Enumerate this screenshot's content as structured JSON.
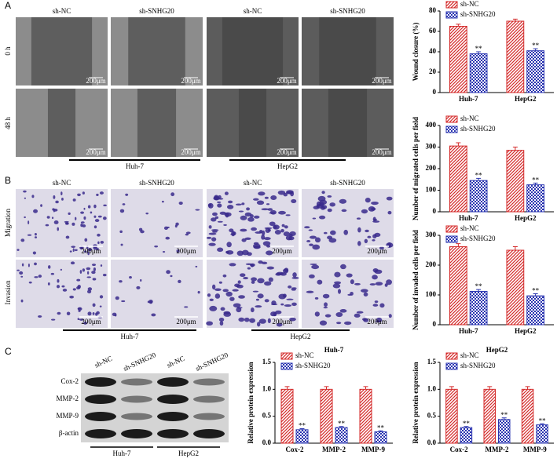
{
  "panel_labels": [
    "A",
    "B",
    "C"
  ],
  "panel_a": {
    "columns": [
      "sh-NC",
      "sh-SNHG20",
      "sh-NC",
      "sh-SNHG20"
    ],
    "rows": [
      "0 h",
      "48 h"
    ],
    "groups": [
      "Huh-7",
      "HepG2"
    ],
    "scale_bar": "200μm"
  },
  "panel_b": {
    "columns": [
      "sh-NC",
      "sh-SNHG20",
      "sh-NC",
      "sh-SNHG20"
    ],
    "rows": [
      "Migration",
      "Invasion"
    ],
    "groups": [
      "Huh-7",
      "HepG2"
    ],
    "scale_bar": "200μm"
  },
  "panel_c": {
    "columns": [
      "sh-NC",
      "sh-SNHG20",
      "sh-NC",
      "sh-SNHG20"
    ],
    "rows": [
      "Cox-2",
      "MMP-2",
      "MMP-9",
      "β-actin"
    ],
    "groups": [
      "Huh-7",
      "HepG2"
    ]
  },
  "chart_data": [
    {
      "type": "bar",
      "y_label": "Wound closure (%)",
      "categories": [
        "Huh-7",
        "HepG2"
      ],
      "series": [
        {
          "name": "sh-NC",
          "color": "#d42a2a",
          "values": [
            65,
            70
          ],
          "errors": [
            2,
            2
          ]
        },
        {
          "name": "sh-SNHG20",
          "color": "#2a34b0",
          "values": [
            38,
            41
          ],
          "errors": [
            2,
            2
          ],
          "annotations": [
            "**",
            "**"
          ]
        }
      ],
      "ylim": [
        0,
        80
      ],
      "yticks": [
        0,
        20,
        40,
        60,
        80
      ],
      "legend": "upper left"
    },
    {
      "type": "bar",
      "y_label": "Number of migrated cells per field",
      "categories": [
        "Huh-7",
        "HepG2"
      ],
      "series": [
        {
          "name": "sh-NC",
          "color": "#d42a2a",
          "values": [
            305,
            285
          ],
          "errors": [
            15,
            15
          ]
        },
        {
          "name": "sh-SNHG20",
          "color": "#2a34b0",
          "values": [
            145,
            125
          ],
          "errors": [
            10,
            8
          ],
          "annotations": [
            "**",
            "**"
          ]
        }
      ],
      "ylim": [
        0,
        400
      ],
      "yticks": [
        0,
        100,
        200,
        300,
        400
      ],
      "legend": "upper left"
    },
    {
      "type": "bar",
      "y_label": "Number of invaded cells per field",
      "categories": [
        "Huh-7",
        "HepG2"
      ],
      "series": [
        {
          "name": "sh-NC",
          "color": "#d42a2a",
          "values": [
            262,
            250
          ],
          "errors": [
            10,
            12
          ]
        },
        {
          "name": "sh-SNHG20",
          "color": "#2a34b0",
          "values": [
            112,
            97
          ],
          "errors": [
            6,
            7
          ],
          "annotations": [
            "**",
            "**"
          ]
        }
      ],
      "ylim": [
        0,
        300
      ],
      "yticks": [
        0,
        100,
        200,
        300
      ],
      "legend": "upper left"
    },
    {
      "type": "bar",
      "title": "Huh-7",
      "y_label": "Relative protein expression",
      "categories": [
        "Cox-2",
        "MMP-2",
        "MMP-9"
      ],
      "series": [
        {
          "name": "sh-NC",
          "color": "#d42a2a",
          "values": [
            1,
            1,
            1
          ],
          "errors": [
            0.05,
            0.05,
            0.05
          ]
        },
        {
          "name": "sh-SNHG20",
          "color": "#2a34b0",
          "values": [
            0.25,
            0.29,
            0.21
          ],
          "errors": [
            0.02,
            0.02,
            0.02
          ],
          "annotations": [
            "**",
            "**",
            "**"
          ]
        }
      ],
      "ylim": [
        0,
        1.5
      ],
      "yticks": [
        {
          "value": 0,
          "label": "0.0"
        },
        0.5,
        {
          "value": 1,
          "label": "1.0"
        },
        1.5
      ],
      "legend": "upper left"
    },
    {
      "type": "bar",
      "title": "HepG2",
      "y_label": "Relative protein expression",
      "categories": [
        "Cox-2",
        "MMP-2",
        "MMP-9"
      ],
      "series": [
        {
          "name": "sh-NC",
          "color": "#d42a2a",
          "values": [
            1,
            1,
            1
          ],
          "errors": [
            0.05,
            0.05,
            0.05
          ]
        },
        {
          "name": "sh-SNHG20",
          "color": "#2a34b0",
          "values": [
            0.29,
            0.44,
            0.34
          ],
          "errors": [
            0.02,
            0.03,
            0.02
          ],
          "annotations": [
            "**",
            "**",
            "**"
          ]
        }
      ],
      "ylim": [
        0,
        1.5
      ],
      "yticks": [
        {
          "value": 0,
          "label": "0.0"
        },
        0.5,
        {
          "value": 1,
          "label": "1.0"
        },
        1.5
      ],
      "legend": "upper left"
    }
  ]
}
